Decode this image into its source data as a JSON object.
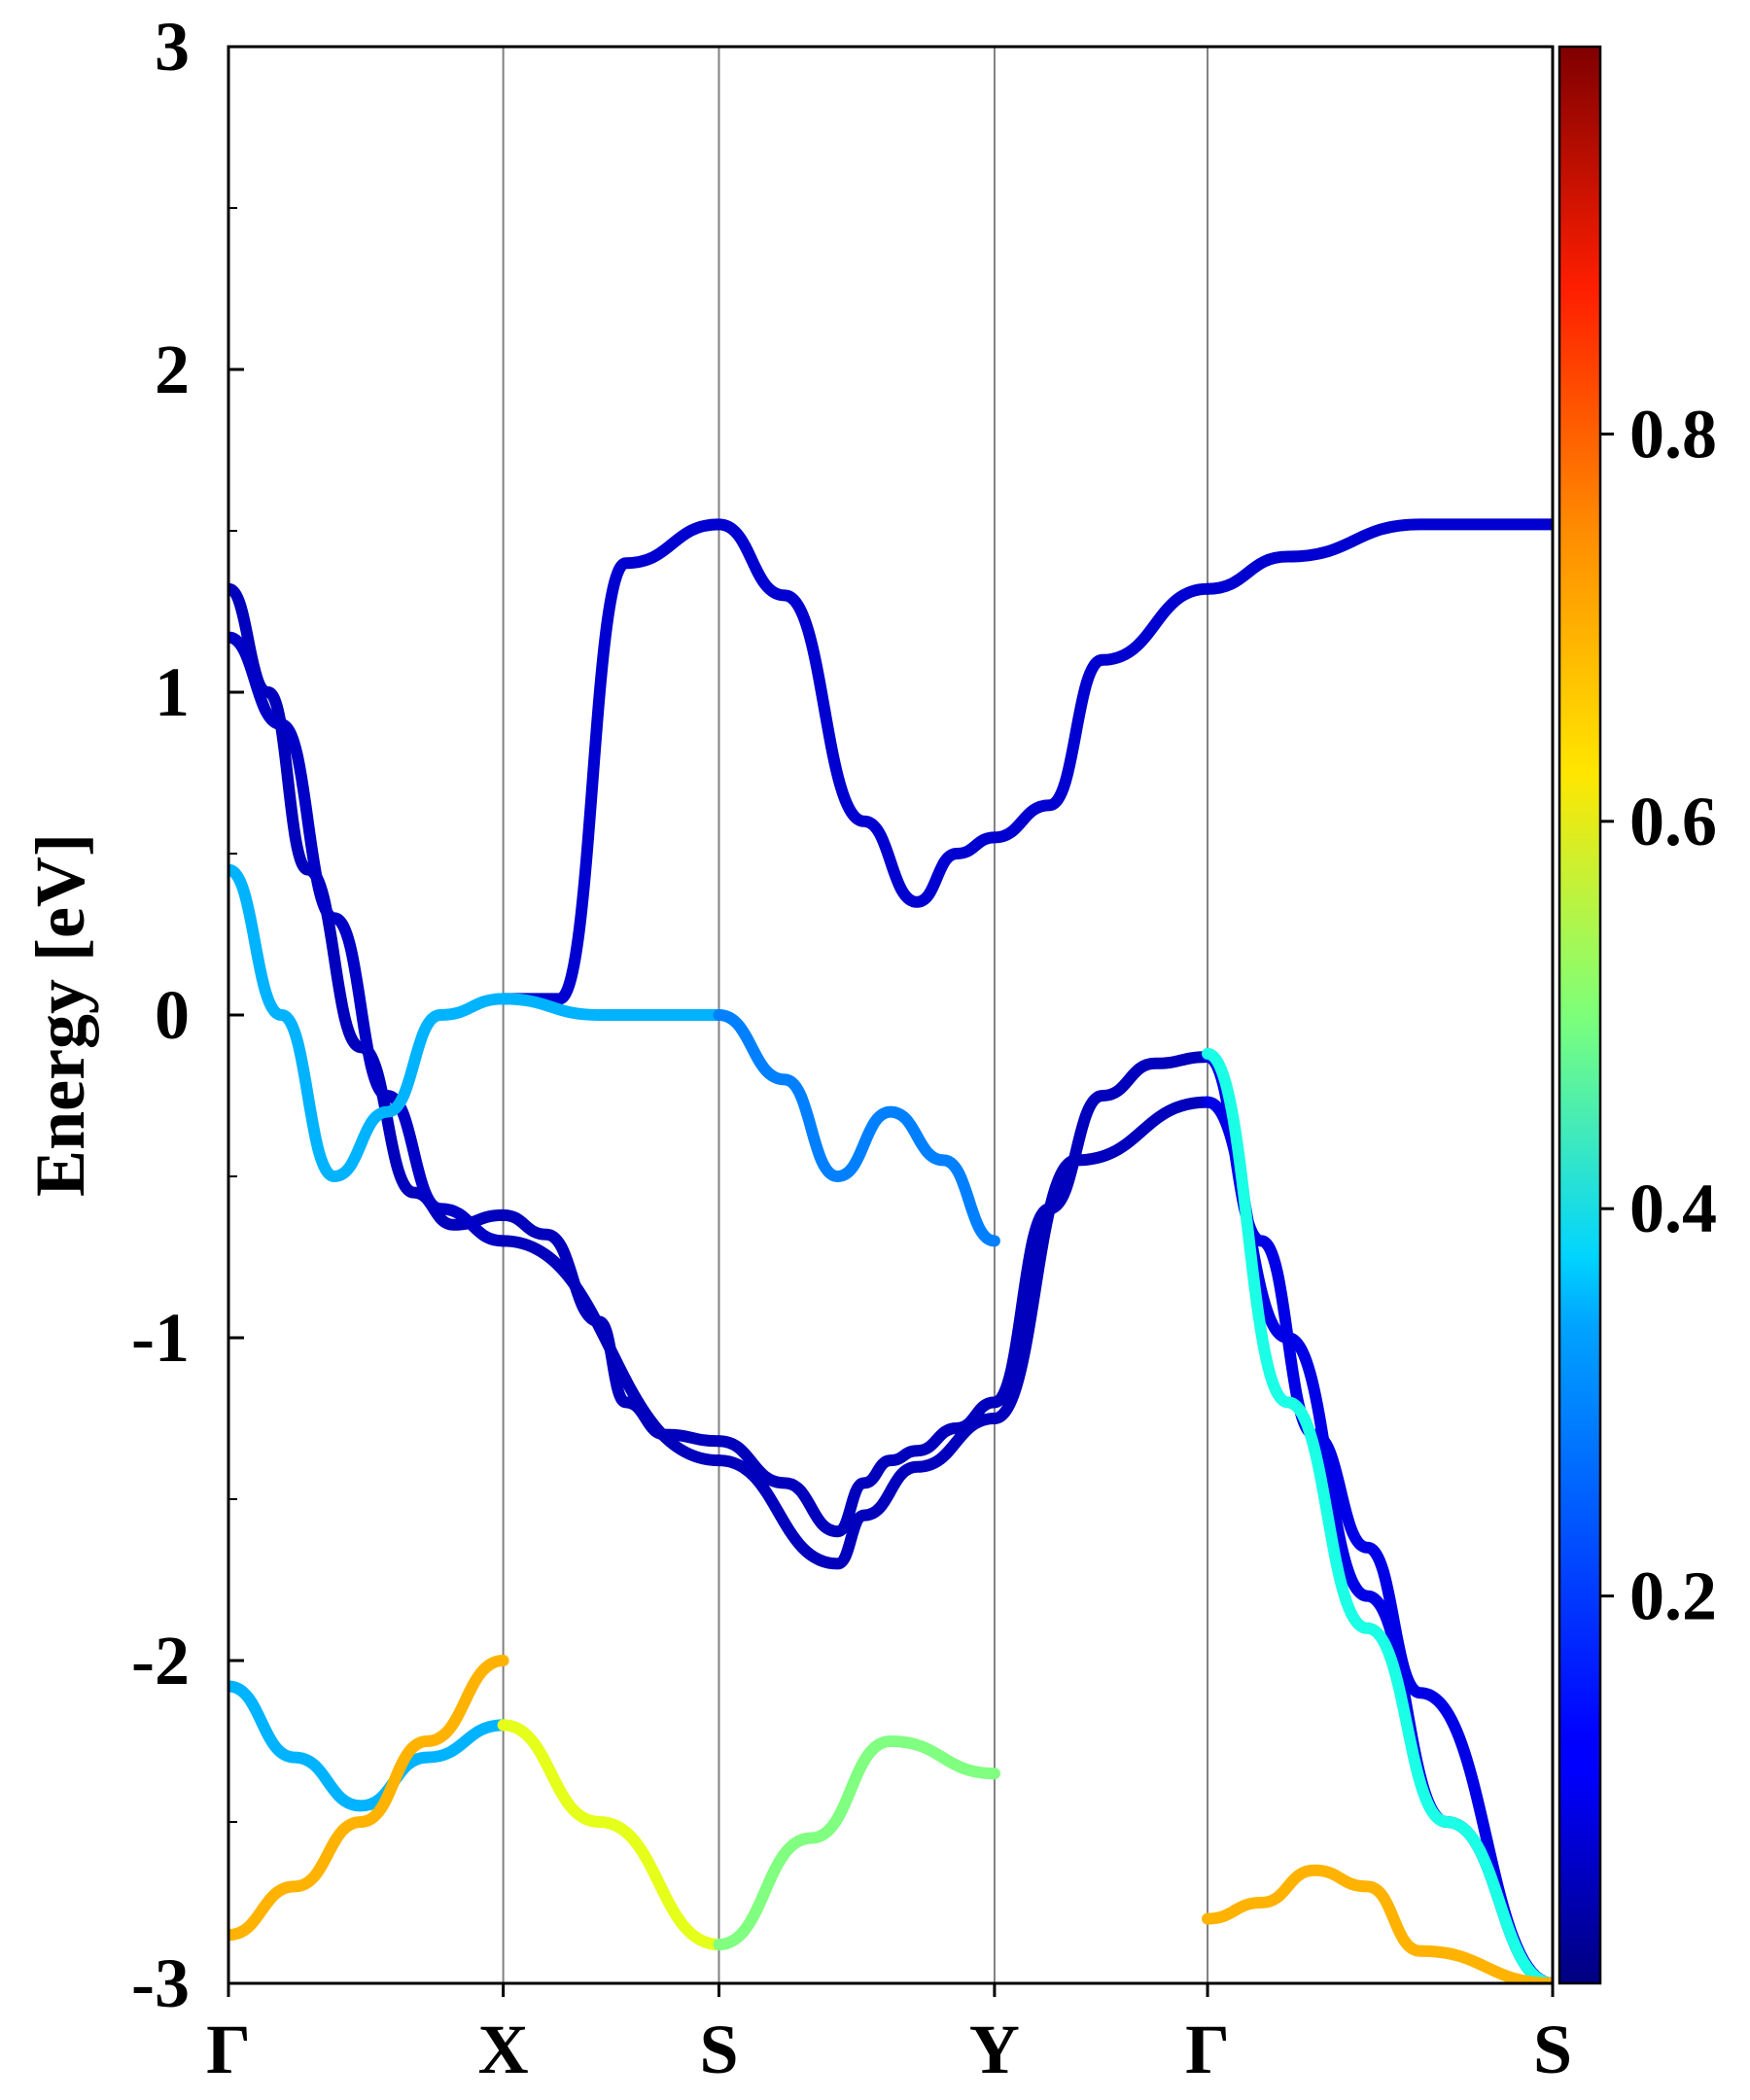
{
  "chart_data": {
    "type": "line",
    "title": "",
    "xlabel": "",
    "ylabel": "Energy [eV]",
    "ylim": [
      -3,
      3
    ],
    "yticks": [
      "3",
      "2",
      "1",
      "0",
      "-1",
      "-2",
      "-3"
    ],
    "ytick_values": [
      3,
      2,
      1,
      0,
      -1,
      -2,
      -3
    ],
    "kpath_labels": [
      "Γ",
      "X",
      "S",
      "Y",
      "Γ",
      "S"
    ],
    "kpath_positions": [
      0,
      0.2075,
      0.3704,
      0.5785,
      0.7394,
      1.0
    ],
    "grid": "vertical lines at high-symmetry points",
    "colormap": "jet",
    "colorbar": {
      "range": [
        0.0,
        1.0
      ],
      "tick_labels": [
        "0.2",
        "0.4",
        "0.6",
        "0.8"
      ],
      "tick_values": [
        0.2,
        0.4,
        0.6,
        0.8
      ]
    },
    "series": [
      {
        "x": [
          0,
          0.03,
          0.06,
          0.1,
          0.14,
          0.17,
          0.2075
        ],
        "y": [
          1.32,
          1.0,
          0.45,
          -0.1,
          -0.55,
          -0.65,
          -0.62
        ],
        "weight": 0.06
      },
      {
        "x": [
          0.2075,
          0.24,
          0.28,
          0.3,
          0.33,
          0.3704
        ],
        "y": [
          -0.62,
          -0.68,
          -0.95,
          -1.2,
          -1.3,
          -1.32
        ],
        "weight": 0.06
      },
      {
        "x": [
          0.3704,
          0.42,
          0.46,
          0.48,
          0.5,
          0.52,
          0.55,
          0.5785
        ],
        "y": [
          -1.32,
          -1.45,
          -1.6,
          -1.45,
          -1.38,
          -1.35,
          -1.28,
          -1.2
        ],
        "weight": 0.06
      },
      {
        "x": [
          0.5785,
          0.62,
          0.66,
          0.7,
          0.7394
        ],
        "y": [
          -1.2,
          -0.6,
          -0.25,
          -0.15,
          -0.13
        ],
        "weight": 0.06
      },
      {
        "x": [
          0.7394,
          0.78,
          0.82,
          0.86,
          0.9,
          1.0
        ],
        "y": [
          -0.13,
          -0.7,
          -1.3,
          -1.65,
          -2.1,
          -3.0
        ],
        "weight": 0.1
      },
      {
        "x": [
          0,
          0.04,
          0.08,
          0.12,
          0.16,
          0.2075
        ],
        "y": [
          1.17,
          0.9,
          0.3,
          -0.25,
          -0.6,
          -0.7
        ],
        "weight": 0.07
      },
      {
        "x": [
          0.2075,
          0.3704
        ],
        "y": [
          -0.7,
          -1.38
        ],
        "weight": 0.06
      },
      {
        "x": [
          0.3704,
          0.46,
          0.48,
          0.52,
          0.5785
        ],
        "y": [
          -1.38,
          -1.7,
          -1.55,
          -1.4,
          -1.25
        ],
        "weight": 0.06
      },
      {
        "x": [
          0.5785,
          0.64,
          0.7394
        ],
        "y": [
          -1.25,
          -0.45,
          -0.27
        ],
        "weight": 0.06
      },
      {
        "x": [
          0.7394,
          0.8,
          0.86,
          0.92,
          1.0
        ],
        "y": [
          -0.27,
          -1.0,
          -1.8,
          -2.5,
          -3.0
        ],
        "weight": 0.1
      },
      {
        "x": [
          0.2075,
          0.25,
          0.3,
          0.3704
        ],
        "y": [
          0.05,
          0.05,
          1.4,
          1.52
        ],
        "weight": 0.08
      },
      {
        "x": [
          0.3704,
          0.42,
          0.48,
          0.52,
          0.55,
          0.5785
        ],
        "y": [
          1.52,
          1.3,
          0.6,
          0.35,
          0.5,
          0.55
        ],
        "weight": 0.08
      },
      {
        "x": [
          0.5785,
          0.62,
          0.66,
          0.7394
        ],
        "y": [
          0.55,
          0.65,
          1.1,
          1.32
        ],
        "weight": 0.08
      },
      {
        "x": [
          0.7394,
          0.8,
          0.9,
          1.0
        ],
        "y": [
          1.32,
          1.42,
          1.52,
          1.52
        ],
        "weight": 0.08
      },
      {
        "x": [
          0,
          0.04,
          0.08,
          0.12,
          0.16,
          0.2075
        ],
        "y": [
          0.45,
          0.0,
          -0.5,
          -0.3,
          0.0,
          0.05
        ],
        "weight": 0.3
      },
      {
        "x": [
          0.2075,
          0.28,
          0.3704
        ],
        "y": [
          0.05,
          0.0,
          0.0
        ],
        "weight": 0.3
      },
      {
        "x": [
          0.3704,
          0.42,
          0.46,
          0.5,
          0.54,
          0.5785
        ],
        "y": [
          0.0,
          -0.2,
          -0.5,
          -0.3,
          -0.45,
          -0.7
        ],
        "weight": 0.25
      },
      {
        "x": [
          0.7394,
          0.8,
          0.86,
          0.92,
          1.0
        ],
        "y": [
          -0.12,
          -1.2,
          -1.9,
          -2.5,
          -3.0
        ],
        "weight": 0.4
      },
      {
        "x": [
          0,
          0.05,
          0.1,
          0.15,
          0.2075
        ],
        "y": [
          -2.08,
          -2.3,
          -2.45,
          -2.3,
          -2.2
        ],
        "weight": 0.3
      },
      {
        "x": [
          0.2075,
          0.28,
          0.3704
        ],
        "y": [
          -2.2,
          -2.5,
          -2.88
        ],
        "weight": 0.6
      },
      {
        "x": [
          0.3704,
          0.44,
          0.5,
          0.5785
        ],
        "y": [
          -2.88,
          -2.55,
          -2.25,
          -2.35
        ],
        "weight": 0.5
      },
      {
        "x": [
          0,
          0.05,
          0.1,
          0.15,
          0.2075
        ],
        "y": [
          -2.85,
          -2.7,
          -2.5,
          -2.25,
          -2.0
        ],
        "weight": 0.7
      },
      {
        "x": [
          0.7394,
          0.78,
          0.82,
          0.86,
          0.9,
          1.0
        ],
        "y": [
          -2.8,
          -2.75,
          -2.65,
          -2.7,
          -2.9,
          -3.0
        ],
        "weight": 0.7
      }
    ]
  }
}
